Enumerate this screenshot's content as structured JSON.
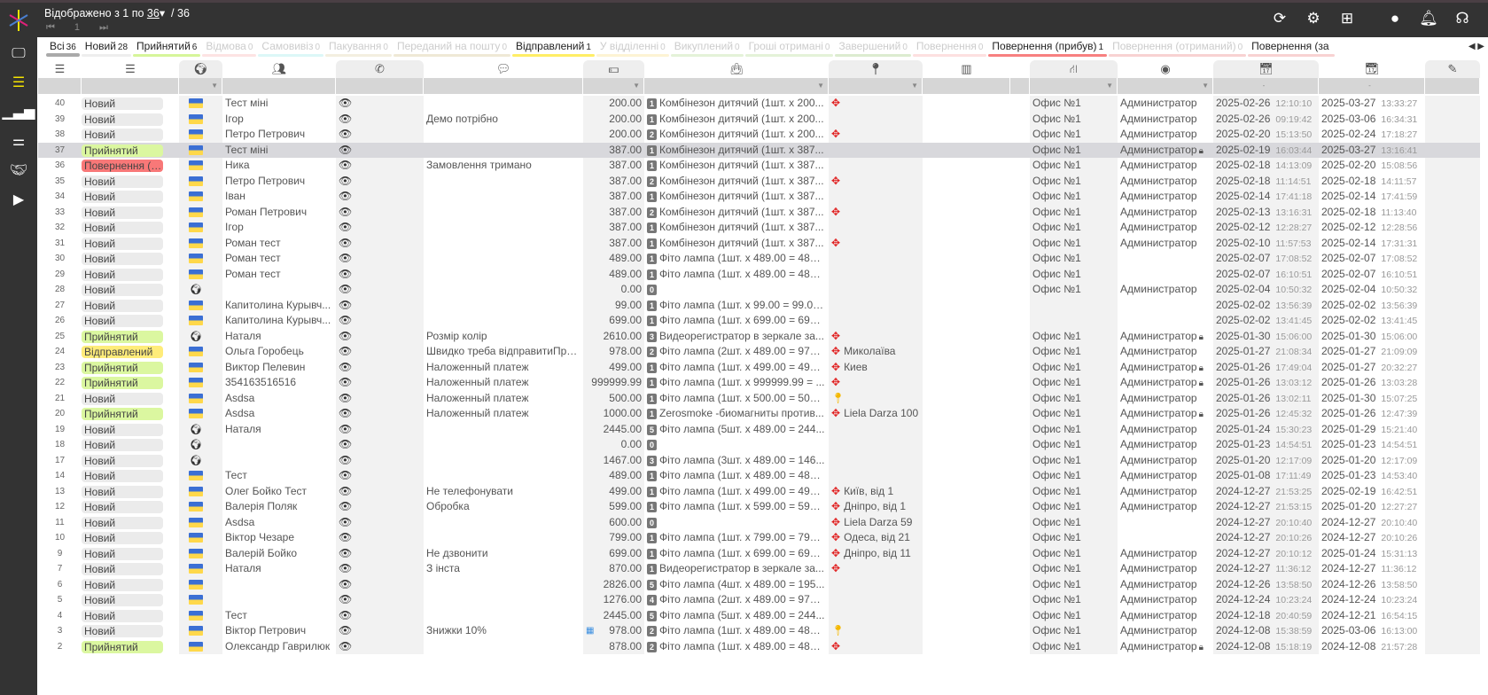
{
  "topbar": {
    "shown_prefix": "Відображено з 1 по",
    "per_page": "36",
    "total": "/ 36",
    "page": "1",
    "icons": [
      "refresh-icon",
      "gear-icon",
      "add-icon",
      "user-icon",
      "bell-icon",
      "support-icon"
    ]
  },
  "sidebar": [
    "monitor-icon",
    "orders-list-icon",
    "analytics-icon",
    "settings-sliders-icon",
    "handshake-icon",
    "video-icon"
  ],
  "tabs": [
    {
      "label": "Всі",
      "count": "36",
      "color": "#aaaaaa"
    },
    {
      "label": "Новий",
      "count": "28",
      "color": "#eeeeee"
    },
    {
      "label": "Прийнятий",
      "count": "6",
      "color": "#d6f59a"
    },
    {
      "label": "Відмова",
      "count": "0",
      "color": "#fde3e3"
    },
    {
      "label": "Самовивіз",
      "count": "0",
      "color": "#dcf7f7"
    },
    {
      "label": "Пакування",
      "count": "0",
      "color": "#f3efe0"
    },
    {
      "label": "Переданий на пошту",
      "count": "0",
      "color": "#efe9d6"
    },
    {
      "label": "Відправлений",
      "count": "1",
      "color": "#ffee66"
    },
    {
      "label": "У відділенні",
      "count": "0",
      "color": "#fdf3d4"
    },
    {
      "label": "Викуплений",
      "count": "0",
      "color": "#e4f2d8"
    },
    {
      "label": "Гроші отримані",
      "count": "0",
      "color": "#e4f2d8"
    },
    {
      "label": "Завершений",
      "count": "0",
      "color": "#dcecd0"
    },
    {
      "label": "Повернення",
      "count": "0",
      "color": "#fde0e0"
    },
    {
      "label": "Повернення (прибув)",
      "count": "1",
      "color": "#f78080"
    },
    {
      "label": "Повернення (отриманий)",
      "count": "0",
      "color": "#f8d2d2"
    },
    {
      "label": "Повернення (за",
      "count": "",
      "color": "#f8d2d2"
    }
  ],
  "status_colors": {
    "Новий": "#ebebeb",
    "Прийнятий": "#dbf7a0",
    "Відправлений": "#ffec7a",
    "Повернення (прибув)": "#f87878"
  },
  "columns": [
    "id-icon",
    "status-icon",
    "globe-icon",
    "customer-icon",
    "phone-icon",
    "comment-icon",
    "money-icon",
    "bag-icon",
    "location-icon",
    "barcode-icon",
    "",
    "branch-icon",
    "user-icon",
    "calendar-created-icon",
    "calendar-edit-icon",
    "edit-icon"
  ],
  "date_filters": [
    "-",
    "-"
  ],
  "rows": [
    {
      "id": "40",
      "status": "Новий",
      "flag": "ua",
      "name": "Тест міні",
      "comment": "",
      "amount": "200.00",
      "items": "1",
      "product": "Комбінезон дитячий (1шт. x 200...",
      "loc": "move",
      "address": "",
      "office": "Офис №1",
      "manager": "Администратор",
      "lock": false,
      "cd": "2025-02-26",
      "ct": "12:10:10",
      "ud": "2025-03-27",
      "ut": "13:33:27"
    },
    {
      "id": "39",
      "status": "Новий",
      "flag": "ua",
      "name": "Ігор",
      "comment": "Демо потрібно",
      "amount": "200.00",
      "items": "1",
      "product": "Комбінезон дитячий (1шт. x 200...",
      "loc": "",
      "address": "",
      "office": "Офис №1",
      "manager": "Администратор",
      "lock": false,
      "cd": "2025-02-26",
      "ct": "09:19:42",
      "ud": "2025-03-06",
      "ut": "16:34:31"
    },
    {
      "id": "38",
      "status": "Новий",
      "flag": "ua",
      "name": "Петро Петрович",
      "comment": "",
      "amount": "200.00",
      "items": "2",
      "product": "Комбінезон дитячий (1шт. x 200...",
      "loc": "move",
      "address": "",
      "office": "Офис №1",
      "manager": "Администратор",
      "lock": false,
      "cd": "2025-02-20",
      "ct": "15:13:50",
      "ud": "2025-02-24",
      "ut": "17:18:27"
    },
    {
      "id": "37",
      "status": "Прийнятий",
      "flag": "ua",
      "name": "Тест міні",
      "comment": "",
      "amount": "387.00",
      "items": "1",
      "product": "Комбінезон дитячий (1шт. x 387...",
      "loc": "",
      "address": "",
      "office": "Офис №1",
      "manager": "Администратор",
      "lock": true,
      "cd": "2025-02-19",
      "ct": "16:03:44",
      "ud": "2025-03-27",
      "ut": "13:16:41",
      "selected": true
    },
    {
      "id": "36",
      "status": "Повернення (прибув)",
      "flag": "ua",
      "name": "Ника",
      "comment": "Замовлення тримано",
      "amount": "387.00",
      "items": "1",
      "product": "Комбінезон дитячий (1шт. x 387...",
      "loc": "",
      "address": "",
      "office": "Офис №1",
      "manager": "Администратор",
      "lock": false,
      "cd": "2025-02-18",
      "ct": "14:13:09",
      "ud": "2025-02-20",
      "ut": "15:08:56"
    },
    {
      "id": "35",
      "status": "Новий",
      "flag": "ua",
      "name": "Петро Петрович",
      "comment": "",
      "amount": "387.00",
      "items": "2",
      "product": "Комбінезон дитячий (1шт. x 387...",
      "loc": "move",
      "address": "",
      "office": "Офис №1",
      "manager": "Администратор",
      "lock": false,
      "cd": "2025-02-18",
      "ct": "11:14:51",
      "ud": "2025-02-18",
      "ut": "14:11:57"
    },
    {
      "id": "34",
      "status": "Новий",
      "flag": "ua",
      "name": "Іван",
      "comment": "",
      "amount": "387.00",
      "items": "1",
      "product": "Комбінезон дитячий (1шт. x 387...",
      "loc": "",
      "address": "",
      "office": "Офис №1",
      "manager": "Администратор",
      "lock": false,
      "cd": "2025-02-14",
      "ct": "17:41:18",
      "ud": "2025-02-14",
      "ut": "17:41:59"
    },
    {
      "id": "33",
      "status": "Новий",
      "flag": "ua",
      "name": "Роман Петрович",
      "comment": "",
      "amount": "387.00",
      "items": "2",
      "product": "Комбінезон дитячий (1шт. x 387...",
      "loc": "move",
      "address": "",
      "office": "Офис №1",
      "manager": "Администратор",
      "lock": false,
      "cd": "2025-02-13",
      "ct": "13:16:31",
      "ud": "2025-02-18",
      "ut": "11:13:40"
    },
    {
      "id": "32",
      "status": "Новий",
      "flag": "ua",
      "name": "Ігор",
      "comment": "",
      "amount": "387.00",
      "items": "1",
      "product": "Комбінезон дитячий (1шт. x 387...",
      "loc": "",
      "address": "",
      "office": "Офис №1",
      "manager": "Администратор",
      "lock": false,
      "cd": "2025-02-12",
      "ct": "12:28:27",
      "ud": "2025-02-12",
      "ut": "12:28:56"
    },
    {
      "id": "31",
      "status": "Новий",
      "flag": "ua",
      "name": "Роман тест",
      "comment": "",
      "amount": "387.00",
      "items": "1",
      "product": "Комбінезон дитячий (1шт. x 387...",
      "loc": "move",
      "address": "",
      "office": "Офис №1",
      "manager": "Администратор",
      "lock": false,
      "cd": "2025-02-10",
      "ct": "11:57:53",
      "ud": "2025-02-14",
      "ut": "17:31:31"
    },
    {
      "id": "30",
      "status": "Новий",
      "flag": "ua",
      "name": "Роман тест",
      "comment": "",
      "amount": "489.00",
      "items": "1",
      "product": "Фіто лампа (1шт. x 489.00 = 489....",
      "loc": "",
      "address": "",
      "office": "Офис №1",
      "manager": "",
      "lock": false,
      "cd": "2025-02-07",
      "ct": "17:08:52",
      "ud": "2025-02-07",
      "ut": "17:08:52"
    },
    {
      "id": "29",
      "status": "Новий",
      "flag": "ua",
      "name": "Роман тест",
      "comment": "",
      "amount": "489.00",
      "items": "1",
      "product": "Фіто лампа (1шт. x 489.00 = 489....",
      "loc": "",
      "address": "",
      "office": "Офис №1",
      "manager": "",
      "lock": false,
      "cd": "2025-02-07",
      "ct": "16:10:51",
      "ud": "2025-02-07",
      "ut": "16:10:51"
    },
    {
      "id": "28",
      "status": "Новий",
      "flag": "globe",
      "name": "",
      "comment": "",
      "amount": "0.00",
      "items": "0",
      "product": "",
      "loc": "",
      "address": "",
      "office": "Офис №1",
      "manager": "Администратор",
      "lock": false,
      "cd": "2025-02-04",
      "ct": "10:50:32",
      "ud": "2025-02-04",
      "ut": "10:50:32"
    },
    {
      "id": "27",
      "status": "Новий",
      "flag": "ua",
      "name": "Капитолина Курывч...",
      "comment": "",
      "amount": "99.00",
      "items": "1",
      "product": "Фіто лампа (1шт. x 99.00 = 99.00...",
      "loc": "",
      "address": "",
      "office": "",
      "manager": "",
      "lock": false,
      "cd": "2025-02-02",
      "ct": "13:56:39",
      "ud": "2025-02-02",
      "ut": "13:56:39"
    },
    {
      "id": "26",
      "status": "Новий",
      "flag": "ua",
      "name": "Капитолина Курывч...",
      "comment": "",
      "amount": "699.00",
      "items": "1",
      "product": "Фіто лампа (1шт. x 699.00 = 699....",
      "loc": "",
      "address": "",
      "office": "",
      "manager": "",
      "lock": false,
      "cd": "2025-02-02",
      "ct": "13:41:45",
      "ud": "2025-02-02",
      "ut": "13:41:45"
    },
    {
      "id": "25",
      "status": "Прийнятий",
      "flag": "globe",
      "name": "Наталя",
      "comment": "Розмір колір",
      "amount": "2610.00",
      "items": "3",
      "product": "Видеорегистратор в зеркале за...",
      "loc": "move",
      "address": "",
      "office": "Офис №1",
      "manager": "Администратор",
      "lock": true,
      "cd": "2025-01-30",
      "ct": "15:06:00",
      "ud": "2025-01-30",
      "ut": "15:06:00"
    },
    {
      "id": "24",
      "status": "Відправлений",
      "flag": "ua",
      "name": "Ольга Горобець",
      "comment": "Швидко треба відправитиПре...",
      "amount": "978.00",
      "items": "2",
      "product": "Фіто лампа (2шт. x 489.00 = 978....",
      "loc": "move",
      "address": "Миколаїва",
      "office": "Офис №1",
      "manager": "Администратор",
      "lock": false,
      "cd": "2025-01-27",
      "ct": "21:08:34",
      "ud": "2025-01-27",
      "ut": "21:09:09"
    },
    {
      "id": "23",
      "status": "Прийнятий",
      "flag": "ua",
      "name": "Виктор Пелевин",
      "comment": "Наложенный платеж",
      "amount": "499.00",
      "items": "1",
      "product": "Фіто лампа (1шт. x 499.00 = 499....",
      "loc": "move",
      "address": "Киев",
      "office": "Офис №1",
      "manager": "Администратор",
      "lock": true,
      "cd": "2025-01-26",
      "ct": "17:49:04",
      "ud": "2025-01-27",
      "ut": "20:32:27"
    },
    {
      "id": "22",
      "status": "Прийнятий",
      "flag": "ua",
      "name": "354163516516",
      "comment": "Наложенный платеж",
      "amount": "999999.99",
      "items": "1",
      "product": "Фіто лампа (1шт. x 999999.99 = ...",
      "loc": "move",
      "address": "",
      "office": "Офис №1",
      "manager": "Администратор",
      "lock": true,
      "cd": "2025-01-26",
      "ct": "13:03:12",
      "ud": "2025-01-26",
      "ut": "13:03:28"
    },
    {
      "id": "21",
      "status": "Новий",
      "flag": "ua",
      "name": "Asdsa",
      "comment": "Наложенный платеж",
      "amount": "500.00",
      "items": "1",
      "product": "Фіто лампа (1шт. x 500.00 = 500....",
      "loc": "pin",
      "address": "",
      "office": "Офис №1",
      "manager": "Администратор",
      "lock": false,
      "cd": "2025-01-26",
      "ct": "13:02:11",
      "ud": "2025-01-30",
      "ut": "15:07:25"
    },
    {
      "id": "20",
      "status": "Прийнятий",
      "flag": "ua",
      "name": "Asdsa",
      "comment": "Наложенный платеж",
      "amount": "1000.00",
      "items": "1",
      "product": "Zerosmoke -биомагниты против...",
      "loc": "move",
      "address": "Liela Darza 100",
      "office": "Офис №1",
      "manager": "Администратор",
      "lock": true,
      "cd": "2025-01-26",
      "ct": "12:45:32",
      "ud": "2025-01-26",
      "ut": "12:47:39"
    },
    {
      "id": "19",
      "status": "Новий",
      "flag": "globe",
      "name": "Наталя",
      "comment": "",
      "amount": "2445.00",
      "items": "5",
      "product": "Фіто лампа (5шт. x 489.00 = 244...",
      "loc": "",
      "address": "",
      "office": "Офис №1",
      "manager": "Администратор",
      "lock": false,
      "cd": "2025-01-24",
      "ct": "15:30:23",
      "ud": "2025-01-29",
      "ut": "15:21:40"
    },
    {
      "id": "18",
      "status": "Новий",
      "flag": "globe",
      "name": "",
      "comment": "",
      "amount": "0.00",
      "items": "0",
      "product": "",
      "loc": "",
      "address": "",
      "office": "Офис №1",
      "manager": "Администратор",
      "lock": false,
      "cd": "2025-01-23",
      "ct": "14:54:51",
      "ud": "2025-01-23",
      "ut": "14:54:51"
    },
    {
      "id": "17",
      "status": "Новий",
      "flag": "globe",
      "name": "",
      "comment": "",
      "amount": "1467.00",
      "items": "3",
      "product": "Фіто лампа (3шт. x 489.00 = 146...",
      "loc": "",
      "address": "",
      "office": "Офис №1",
      "manager": "Администратор",
      "lock": false,
      "cd": "2025-01-20",
      "ct": "12:17:09",
      "ud": "2025-01-20",
      "ut": "12:17:09"
    },
    {
      "id": "14",
      "status": "Новий",
      "flag": "ua",
      "name": "Тест",
      "comment": "",
      "amount": "489.00",
      "items": "1",
      "product": "Фіто лампа (1шт. x 489.00 = 489....",
      "loc": "",
      "address": "",
      "office": "Офис №1",
      "manager": "Администратор",
      "lock": false,
      "cd": "2025-01-08",
      "ct": "17:11:49",
      "ud": "2025-01-23",
      "ut": "14:53:40"
    },
    {
      "id": "13",
      "status": "Новий",
      "flag": "ua",
      "name": "Олег Бойко Тест",
      "comment": "Не телефонувати",
      "amount": "499.00",
      "items": "1",
      "product": "Фіто лампа (1шт. x 499.00 = 499....",
      "loc": "move",
      "address": "Київ, від 1",
      "office": "Офис №1",
      "manager": "Администратор",
      "lock": false,
      "cd": "2024-12-27",
      "ct": "21:53:25",
      "ud": "2025-02-19",
      "ut": "16:42:51"
    },
    {
      "id": "12",
      "status": "Новий",
      "flag": "ua",
      "name": "Валерія Поляк",
      "comment": "Обробка",
      "amount": "599.00",
      "items": "1",
      "product": "Фіто лампа (1шт. x 599.00 = 599....",
      "loc": "move",
      "address": "Дніпро, від 1",
      "office": "Офис №1",
      "manager": "Администратор",
      "lock": false,
      "cd": "2024-12-27",
      "ct": "21:53:15",
      "ud": "2025-01-20",
      "ut": "12:27:27"
    },
    {
      "id": "11",
      "status": "Новий",
      "flag": "ua",
      "name": "Asdsa",
      "comment": "",
      "amount": "600.00",
      "items": "0",
      "product": "",
      "loc": "move",
      "address": "Liela Darza 59",
      "office": "Офис №1",
      "manager": "",
      "lock": false,
      "cd": "2024-12-27",
      "ct": "20:10:40",
      "ud": "2024-12-27",
      "ut": "20:10:40"
    },
    {
      "id": "10",
      "status": "Новий",
      "flag": "ua",
      "name": "Віктор Чезаре",
      "comment": "",
      "amount": "799.00",
      "items": "1",
      "product": "Фіто лампа (1шт. x 799.00 = 799....",
      "loc": "move",
      "address": "Одеса, від 21",
      "office": "Офис №1",
      "manager": "",
      "lock": false,
      "cd": "2024-12-27",
      "ct": "20:10:26",
      "ud": "2024-12-27",
      "ut": "20:10:26"
    },
    {
      "id": "9",
      "status": "Новий",
      "flag": "ua",
      "name": "Валерій Бойко",
      "comment": "Не дзвонити",
      "amount": "699.00",
      "items": "1",
      "product": "Фіто лампа (1шт. x 699.00 = 699....",
      "loc": "move",
      "address": "Дніпро, від 11",
      "office": "Офис №1",
      "manager": "Администратор",
      "lock": false,
      "cd": "2024-12-27",
      "ct": "20:10:12",
      "ud": "2025-01-24",
      "ut": "15:31:13"
    },
    {
      "id": "7",
      "status": "Новий",
      "flag": "ua",
      "name": "Наталя",
      "comment": "З інста",
      "amount": "870.00",
      "items": "1",
      "product": "Видеорегистратор в зеркале за...",
      "loc": "move",
      "address": "",
      "office": "Офис №1",
      "manager": "Администратор",
      "lock": false,
      "cd": "2024-12-27",
      "ct": "11:36:12",
      "ud": "2024-12-27",
      "ut": "11:36:12"
    },
    {
      "id": "6",
      "status": "Новий",
      "flag": "ua",
      "name": "",
      "comment": "",
      "amount": "2826.00",
      "items": "5",
      "product": "Фіто лампа (4шт. x 489.00 = 195...",
      "loc": "",
      "address": "",
      "office": "Офис №1",
      "manager": "Администратор",
      "lock": false,
      "cd": "2024-12-26",
      "ct": "13:58:50",
      "ud": "2024-12-26",
      "ut": "13:58:50"
    },
    {
      "id": "5",
      "status": "Новий",
      "flag": "ua",
      "name": "",
      "comment": "",
      "amount": "1276.00",
      "items": "4",
      "product": "Фіто лампа (2шт. x 489.00 = 978....",
      "loc": "",
      "address": "",
      "office": "Офис №1",
      "manager": "Администратор",
      "lock": false,
      "cd": "2024-12-24",
      "ct": "10:23:24",
      "ud": "2024-12-24",
      "ut": "10:23:24"
    },
    {
      "id": "4",
      "status": "Новий",
      "flag": "ua",
      "name": "Тест",
      "comment": "",
      "amount": "2445.00",
      "items": "5",
      "product": "Фіто лампа (5шт. x 489.00 = 244...",
      "loc": "",
      "address": "",
      "office": "Офис №1",
      "manager": "Администратор",
      "lock": false,
      "cd": "2024-12-18",
      "ct": "20:40:59",
      "ud": "2024-12-21",
      "ut": "16:54:15"
    },
    {
      "id": "3",
      "status": "Новий",
      "flag": "ua",
      "name": "Віктор Петрович",
      "comment": "Знижки 10%",
      "amount": "978.00",
      "items": "2",
      "product": "Фіто лампа (1шт. x 489.00 = 489....",
      "loc": "pin",
      "address": "",
      "office": "Офис №1",
      "manager": "Администратор",
      "lock": false,
      "cd": "2024-12-08",
      "ct": "15:38:59",
      "ud": "2025-03-06",
      "ut": "16:13:00",
      "extra": "calculator-icon"
    },
    {
      "id": "2",
      "status": "Прийнятий",
      "flag": "ua",
      "name": "Олександр Гаврилюк",
      "comment": "",
      "amount": "878.00",
      "items": "2",
      "product": "Фіто лампа (1шт. x 489.00 = 489....",
      "loc": "move",
      "address": "",
      "office": "Офис №1",
      "manager": "Администратор",
      "lock": true,
      "cd": "2024-12-08",
      "ct": "15:18:19",
      "ud": "2024-12-08",
      "ut": "21:57:28"
    }
  ]
}
